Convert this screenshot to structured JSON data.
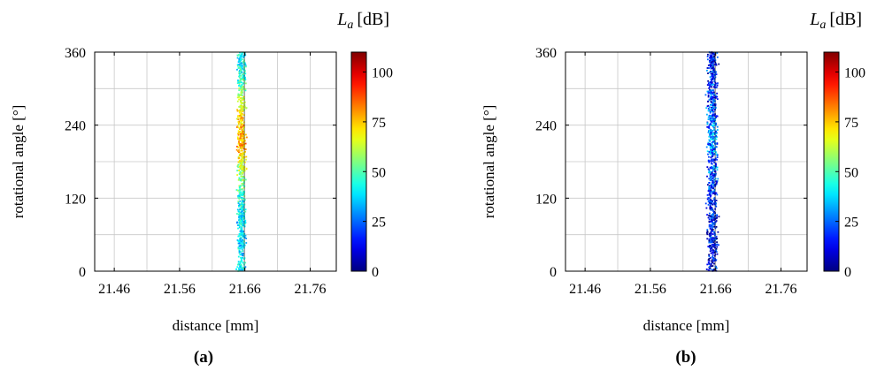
{
  "chart_data": [
    {
      "type": "scatter",
      "caption": "(a)",
      "xlabel": "distance [mm]",
      "ylabel": "rotational angle [°]",
      "colorbar_label": "[dB]",
      "colorbar_symbol": "L",
      "colorbar_subscript": "a",
      "colormap": "jet",
      "xlim": [
        21.43,
        21.8
      ],
      "ylim": [
        0,
        360
      ],
      "xticks": [
        "21.46",
        "21.56",
        "21.66",
        "21.76"
      ],
      "yticks": [
        "0",
        "120",
        "240",
        "360"
      ],
      "clim": [
        0,
        110
      ],
      "cticks": [
        "0",
        "25",
        "50",
        "75",
        "100"
      ],
      "grid": true,
      "band_center_x": 21.655,
      "band_width_x": 0.012,
      "level_profile": [
        {
          "angle": 0,
          "level": 38
        },
        {
          "angle": 60,
          "level": 38
        },
        {
          "angle": 100,
          "level": 40
        },
        {
          "angle": 150,
          "level": 55
        },
        {
          "angle": 180,
          "level": 65
        },
        {
          "angle": 210,
          "level": 80
        },
        {
          "angle": 240,
          "level": 75
        },
        {
          "angle": 280,
          "level": 62
        },
        {
          "angle": 320,
          "level": 45
        },
        {
          "angle": 360,
          "level": 40
        }
      ],
      "level_spread": 12
    },
    {
      "type": "scatter",
      "caption": "(b)",
      "xlabel": "distance [mm]",
      "ylabel": "rotational angle [°]",
      "colorbar_label": "[dB]",
      "colorbar_symbol": "L",
      "colorbar_subscript": "a",
      "colormap": "jet",
      "xlim": [
        21.43,
        21.8
      ],
      "ylim": [
        0,
        360
      ],
      "xticks": [
        "21.46",
        "21.56",
        "21.66",
        "21.76"
      ],
      "yticks": [
        "0",
        "120",
        "240",
        "360"
      ],
      "clim": [
        0,
        110
      ],
      "cticks": [
        "0",
        "25",
        "50",
        "75",
        "100"
      ],
      "grid": true,
      "band_center_x": 21.655,
      "band_width_x": 0.014,
      "level_profile": [
        {
          "angle": 0,
          "level": 12
        },
        {
          "angle": 100,
          "level": 14
        },
        {
          "angle": 180,
          "level": 22
        },
        {
          "angle": 220,
          "level": 30
        },
        {
          "angle": 260,
          "level": 24
        },
        {
          "angle": 300,
          "level": 18
        },
        {
          "angle": 360,
          "level": 14
        }
      ],
      "level_spread": 16
    }
  ]
}
